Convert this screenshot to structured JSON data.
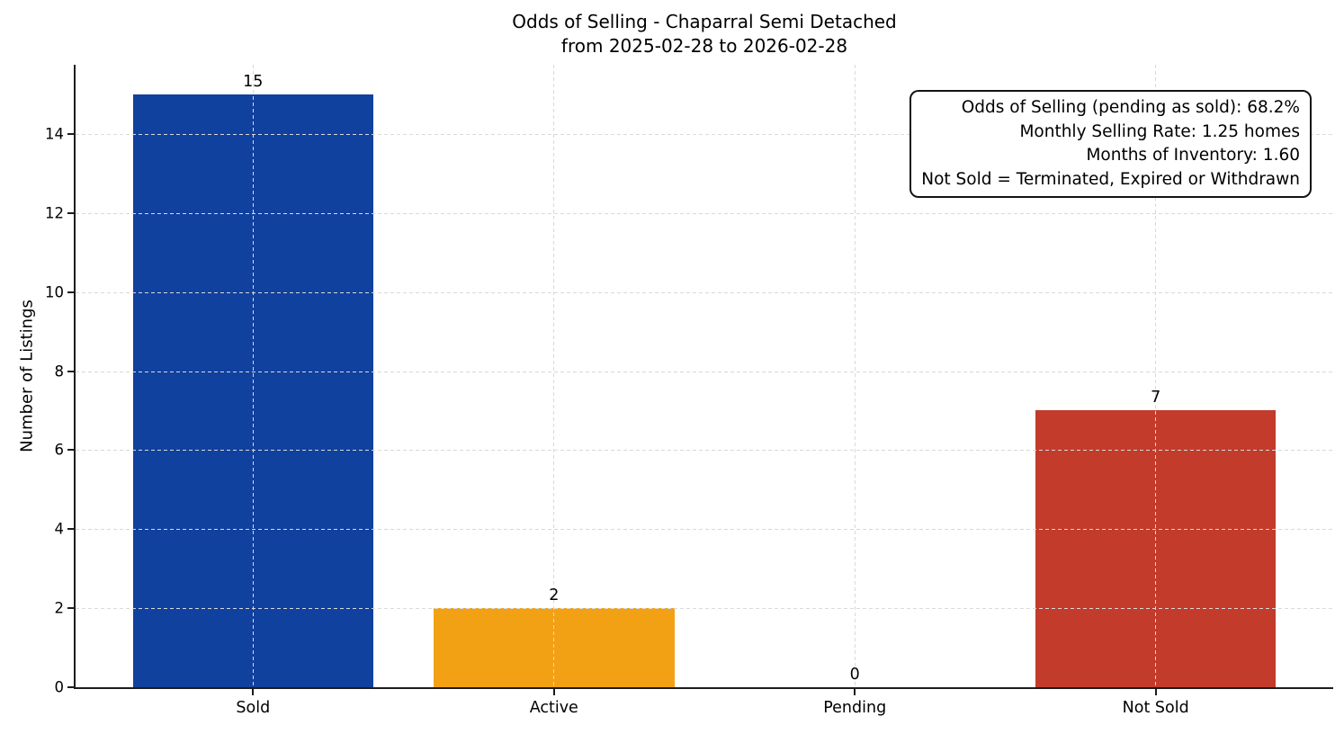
{
  "colors": {
    "background": "#ffffff",
    "spine": "#1c1c1c",
    "grid": "#d9d9d9",
    "text": "#000000",
    "bar_sold": "#11419e",
    "bar_active": "#f2a115",
    "bar_not_sold": "#c23b2b"
  },
  "chart_data": {
    "type": "bar",
    "title": "Odds of Selling - Chaparral Semi Detached",
    "subtitle": "from 2025-02-28 to 2026-02-28",
    "categories": [
      "Sold",
      "Active",
      "Pending",
      "Not Sold"
    ],
    "values": [
      15,
      2,
      0,
      7
    ],
    "value_labels": [
      "15",
      "2",
      "0",
      "7"
    ],
    "bar_colors": [
      "#11419e",
      "#f2a115",
      null,
      "#c23b2b"
    ],
    "xlabel": "",
    "ylabel": "Number of Listings",
    "ylim": [
      0,
      15.75
    ],
    "yticks": [
      0,
      2,
      4,
      6,
      8,
      10,
      12,
      14
    ],
    "xlim": [
      -0.59,
      3.59
    ],
    "bar_width_ratio": 0.8,
    "grid": "both-axes-dashed",
    "legend": "none",
    "annotation_lines": [
      "Odds of Selling (pending as sold): 68.2%",
      "Monthly Selling Rate: 1.25 homes",
      "Months of Inventory: 1.60",
      "Not Sold = Terminated, Expired or Withdrawn"
    ]
  }
}
